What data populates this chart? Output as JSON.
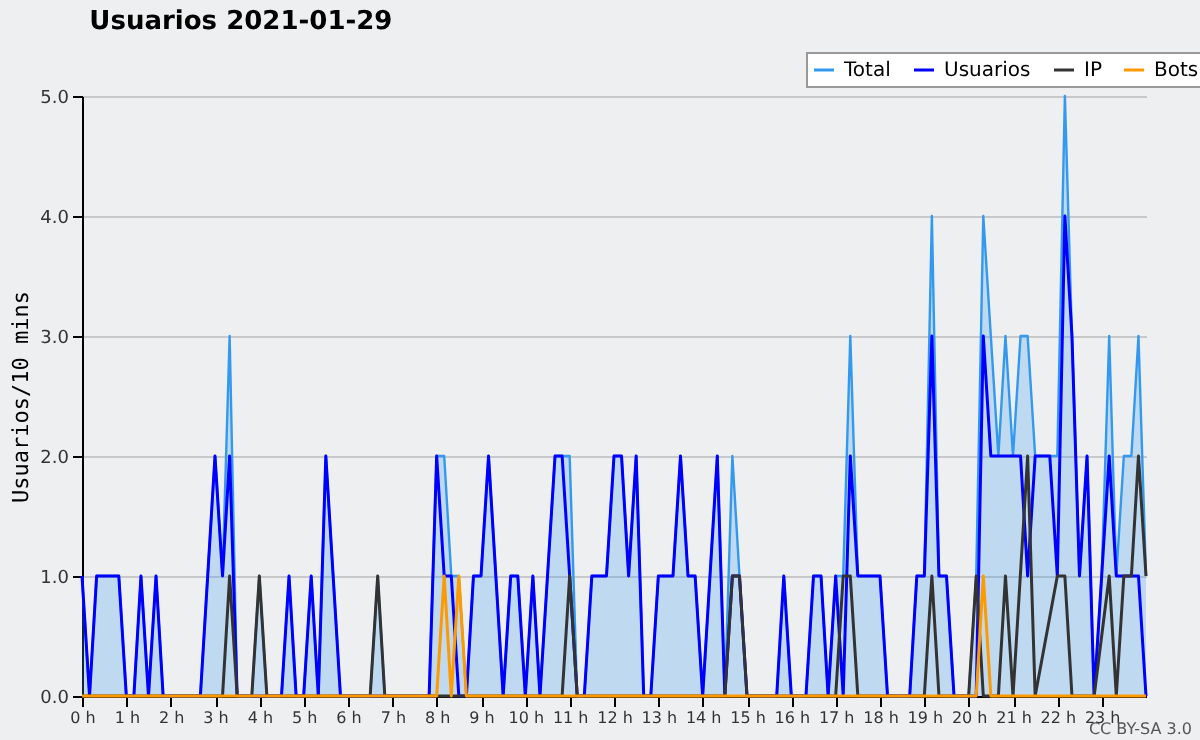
{
  "chart_data": {
    "type": "line",
    "title": "Usuarios  2021-01-29",
    "ylabel": "Usuarios/10 mins",
    "annotations": [
      "CC BY-SA 3.0"
    ],
    "xlim": [
      0,
      24
    ],
    "xticks": [
      {
        "value": 0,
        "label": "0 h"
      },
      {
        "value": 1,
        "label": "1 h"
      },
      {
        "value": 2,
        "label": "2 h"
      },
      {
        "value": 3,
        "label": "3 h"
      },
      {
        "value": 4,
        "label": "4 h"
      },
      {
        "value": 5,
        "label": "5 h"
      },
      {
        "value": 6,
        "label": "6 h"
      },
      {
        "value": 7,
        "label": "7 h"
      },
      {
        "value": 8,
        "label": "8 h"
      },
      {
        "value": 9,
        "label": "9 h"
      },
      {
        "value": 10,
        "label": "10 h"
      },
      {
        "value": 11,
        "label": "11 h"
      },
      {
        "value": 12,
        "label": "12 h"
      },
      {
        "value": 13,
        "label": "13 h"
      },
      {
        "value": 14,
        "label": "14 h"
      },
      {
        "value": 15,
        "label": "15 h"
      },
      {
        "value": 16,
        "label": "16 h"
      },
      {
        "value": 17,
        "label": "17 h"
      },
      {
        "value": 18,
        "label": "18 h"
      },
      {
        "value": 19,
        "label": "19 h"
      },
      {
        "value": 20,
        "label": "20 h"
      },
      {
        "value": 21,
        "label": "21 h"
      },
      {
        "value": 22,
        "label": "22 h"
      },
      {
        "value": 23,
        "label": "23 h"
      }
    ],
    "ylim": [
      0,
      5
    ],
    "yticks": [
      {
        "value": 0,
        "label": "0.0"
      },
      {
        "value": 1,
        "label": "1.0"
      },
      {
        "value": 2,
        "label": "2.0"
      },
      {
        "value": 3,
        "label": "3.0"
      },
      {
        "value": 4,
        "label": "4.0"
      },
      {
        "value": 5,
        "label": "5.0"
      }
    ],
    "grid": "y",
    "legend": "top right",
    "series": [
      {
        "name": "Total",
        "type": "area",
        "color": "#3399ee",
        "x": [
          0,
          0.17,
          0.33,
          0.83,
          1,
          1.17,
          1.33,
          1.5,
          1.67,
          1.83,
          2.67,
          3,
          3.17,
          3.33,
          3.5,
          3.83,
          4,
          4.17,
          4.5,
          4.67,
          4.83,
          5,
          5.17,
          5.33,
          5.5,
          5.83,
          6.5,
          6.67,
          6.83,
          7.83,
          8,
          8.17,
          8.33,
          8.5,
          8.67,
          8.83,
          9,
          9.17,
          9.5,
          9.67,
          9.83,
          10,
          10.17,
          10.33,
          10.5,
          10.67,
          11,
          11.17,
          11.33,
          11.5,
          11.83,
          12,
          12.17,
          12.33,
          12.5,
          12.67,
          12.83,
          13,
          13.33,
          13.5,
          13.67,
          13.83,
          14,
          14.33,
          14.5,
          14.67,
          14.83,
          15,
          15.67,
          15.83,
          16,
          16.33,
          16.5,
          16.67,
          16.83,
          17,
          17.17,
          17.33,
          17.5,
          18,
          18.17,
          18.67,
          18.83,
          19,
          19.17,
          19.33,
          19.5,
          19.67,
          20,
          20.17,
          20.33,
          20.5,
          20.67,
          20.83,
          21,
          21.17,
          21.33,
          21.5,
          22,
          22.17,
          22.33,
          22.5,
          22.67,
          22.83,
          23,
          23.17,
          23.33,
          23.5,
          23.67,
          23.83,
          24
        ],
        "values": [
          1,
          0,
          1,
          1,
          0,
          0,
          1,
          0,
          1,
          0,
          0,
          2,
          1,
          3,
          0,
          0,
          1,
          0,
          0,
          1,
          0,
          0,
          1,
          0,
          2,
          0,
          0,
          1,
          0,
          0,
          2,
          2,
          1,
          1,
          0,
          1,
          1,
          2,
          0,
          1,
          1,
          0,
          1,
          0,
          1,
          2,
          2,
          0,
          0,
          1,
          1,
          2,
          2,
          1,
          2,
          0,
          0,
          1,
          1,
          2,
          1,
          1,
          0,
          2,
          0,
          2,
          1,
          0,
          0,
          1,
          0,
          0,
          1,
          1,
          0,
          1,
          1,
          3,
          1,
          1,
          0,
          0,
          1,
          1,
          4,
          1,
          1,
          0,
          0,
          1,
          4,
          3,
          2,
          3,
          2,
          3,
          3,
          2,
          2,
          5,
          3,
          1,
          2,
          0,
          1,
          3,
          1,
          2,
          2,
          3,
          1
        ]
      },
      {
        "name": "Usuarios",
        "type": "line",
        "color": "#0000ff",
        "x": [
          0,
          0.17,
          0.33,
          0.83,
          1,
          1.17,
          1.33,
          1.5,
          1.67,
          1.83,
          2.67,
          3,
          3.17,
          3.33,
          3.5,
          4.5,
          4.67,
          4.83,
          5,
          5.17,
          5.33,
          5.5,
          5.83,
          7.83,
          8,
          8.17,
          8.33,
          8.5,
          8.67,
          8.83,
          9,
          9.17,
          9.5,
          9.67,
          9.83,
          10,
          10.17,
          10.33,
          10.5,
          10.67,
          10.83,
          11,
          11.17,
          11.33,
          11.5,
          11.83,
          12,
          12.17,
          12.33,
          12.5,
          12.67,
          12.83,
          13,
          13.33,
          13.5,
          13.67,
          13.83,
          14,
          14.33,
          14.5,
          14.67,
          14.83,
          15,
          15.67,
          15.83,
          16,
          16.33,
          16.5,
          16.67,
          16.83,
          17,
          17.17,
          17.33,
          17.5,
          18,
          18.17,
          18.67,
          18.83,
          19,
          19.17,
          19.33,
          19.5,
          19.67,
          20.17,
          20.33,
          20.5,
          21.17,
          21.33,
          21.5,
          21.83,
          22,
          22.17,
          22.33,
          22.5,
          22.67,
          22.83,
          23,
          23.17,
          23.33,
          23.83,
          24
        ],
        "values": [
          1,
          0,
          1,
          1,
          0,
          0,
          1,
          0,
          1,
          0,
          0,
          2,
          1,
          2,
          0,
          0,
          1,
          0,
          0,
          1,
          0,
          2,
          0,
          0,
          2,
          1,
          1,
          0,
          0,
          1,
          1,
          2,
          0,
          1,
          1,
          0,
          1,
          0,
          1,
          2,
          2,
          1,
          0,
          0,
          1,
          1,
          2,
          2,
          1,
          2,
          0,
          0,
          1,
          1,
          2,
          1,
          1,
          0,
          2,
          0,
          1,
          1,
          0,
          0,
          1,
          0,
          0,
          1,
          1,
          0,
          1,
          0,
          2,
          1,
          1,
          0,
          0,
          1,
          1,
          3,
          1,
          1,
          0,
          0,
          3,
          2,
          2,
          1,
          2,
          2,
          1,
          4,
          3,
          1,
          2,
          0,
          1,
          2,
          1,
          1,
          0
        ]
      },
      {
        "name": "IP",
        "type": "line",
        "color": "#333333",
        "x": [
          0,
          3.17,
          3.33,
          3.5,
          3.83,
          4,
          4.17,
          6.5,
          6.67,
          6.83,
          10.83,
          11,
          11.17,
          14.5,
          14.67,
          14.83,
          15,
          17,
          17.17,
          17.33,
          17.5,
          19,
          19.17,
          19.33,
          20,
          20.17,
          20.33,
          20.67,
          20.83,
          21,
          21.33,
          21.5,
          22,
          22.17,
          22.33,
          22.83,
          23.17,
          23.33,
          23.5,
          23.67,
          23.83,
          24
        ],
        "values": [
          0,
          0,
          1,
          0,
          0,
          1,
          0,
          0,
          1,
          0,
          0,
          1,
          0,
          0,
          1,
          1,
          0,
          0,
          1,
          1,
          0,
          0,
          1,
          0,
          0,
          1,
          0,
          0,
          1,
          0,
          2,
          0,
          1,
          1,
          0,
          0,
          1,
          0,
          1,
          1,
          2,
          1
        ]
      },
      {
        "name": "Bots",
        "type": "line",
        "color": "#ff9900",
        "x": [
          0,
          8,
          8.17,
          8.33,
          8.5,
          8.67,
          20.17,
          20.33,
          20.5,
          24
        ],
        "values": [
          0,
          0,
          1,
          0,
          1,
          0,
          0,
          1,
          0,
          0
        ]
      }
    ]
  }
}
